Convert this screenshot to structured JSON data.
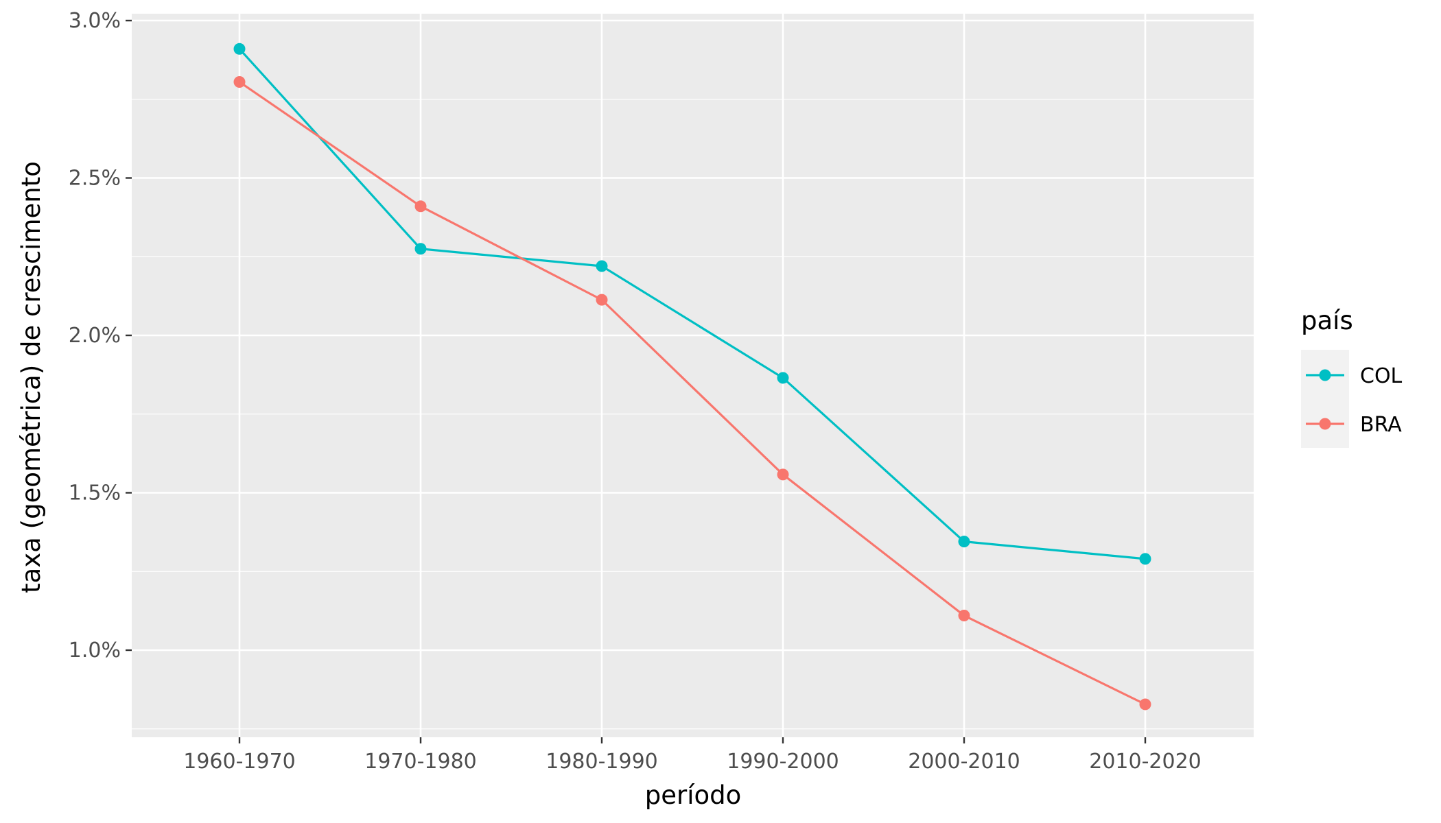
{
  "chart_data": {
    "type": "line",
    "xlabel": "período",
    "ylabel": "taxa (geométrica) de crescimento",
    "categories": [
      "1960-1970",
      "1970-1980",
      "1980-1990",
      "1990-2000",
      "2000-2010",
      "2010-2020"
    ],
    "y_ticks": [
      {
        "value": 1.0,
        "label": "1.0%"
      },
      {
        "value": 1.5,
        "label": "1.5%"
      },
      {
        "value": 2.0,
        "label": "2.0%"
      },
      {
        "value": 2.5,
        "label": "2.5%"
      },
      {
        "value": 3.0,
        "label": "3.0%"
      }
    ],
    "ylim": [
      0.74,
      3.0
    ],
    "grid": true,
    "legend": {
      "title": "país",
      "placement": "right",
      "items": [
        {
          "label": "COL",
          "color": "#00BFC4"
        },
        {
          "label": "BRA",
          "color": "#F8766D"
        }
      ]
    },
    "series": [
      {
        "name": "COL",
        "color": "#00BFC4",
        "values": [
          2.91,
          2.275,
          2.22,
          1.865,
          1.345,
          1.29
        ]
      },
      {
        "name": "BRA",
        "color": "#F8766D",
        "values": [
          2.805,
          2.41,
          2.113,
          1.558,
          1.11,
          0.828
        ]
      }
    ]
  }
}
